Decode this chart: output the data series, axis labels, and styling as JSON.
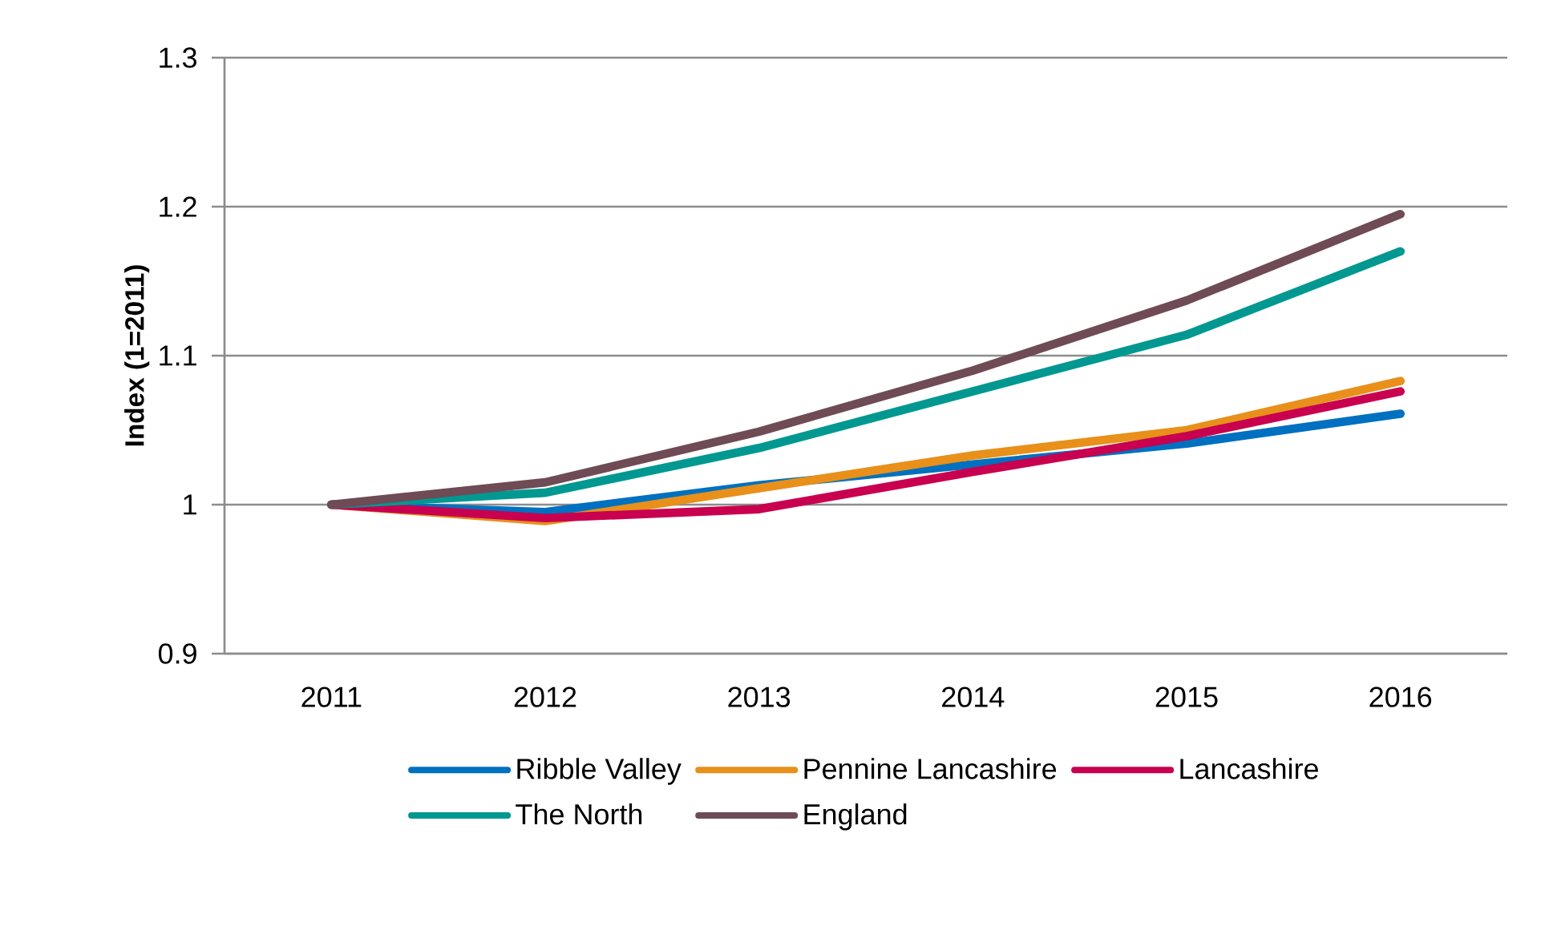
{
  "chart_data": {
    "type": "line",
    "ylabel": "Index (1=2011)",
    "categories": [
      "2011",
      "2012",
      "2013",
      "2014",
      "2015",
      "2016"
    ],
    "ylim": [
      0.9,
      1.3
    ],
    "yticks": [
      0.9,
      1,
      1.1,
      1.2,
      1.3
    ],
    "grid": "y",
    "legend": "bottom",
    "marker": "none",
    "line_style": "solid",
    "series": [
      {
        "name": "Ribble Valley",
        "color": "#0070c0",
        "values": [
          1.0,
          0.995,
          1.013,
          1.027,
          1.041,
          1.061
        ]
      },
      {
        "name": "Pennine Lancashire",
        "color": "#e8901a",
        "values": [
          1.0,
          0.989,
          1.011,
          1.033,
          1.05,
          1.083
        ]
      },
      {
        "name": "Lancashire",
        "color": "#c8004f",
        "values": [
          1.0,
          0.991,
          0.997,
          1.022,
          1.046,
          1.076
        ]
      },
      {
        "name": "The North",
        "color": "#009890",
        "values": [
          1.0,
          1.008,
          1.038,
          1.076,
          1.114,
          1.17
        ]
      },
      {
        "name": "England",
        "color": "#6e4b55",
        "values": [
          1.0,
          1.015,
          1.049,
          1.09,
          1.137,
          1.195
        ]
      }
    ]
  }
}
